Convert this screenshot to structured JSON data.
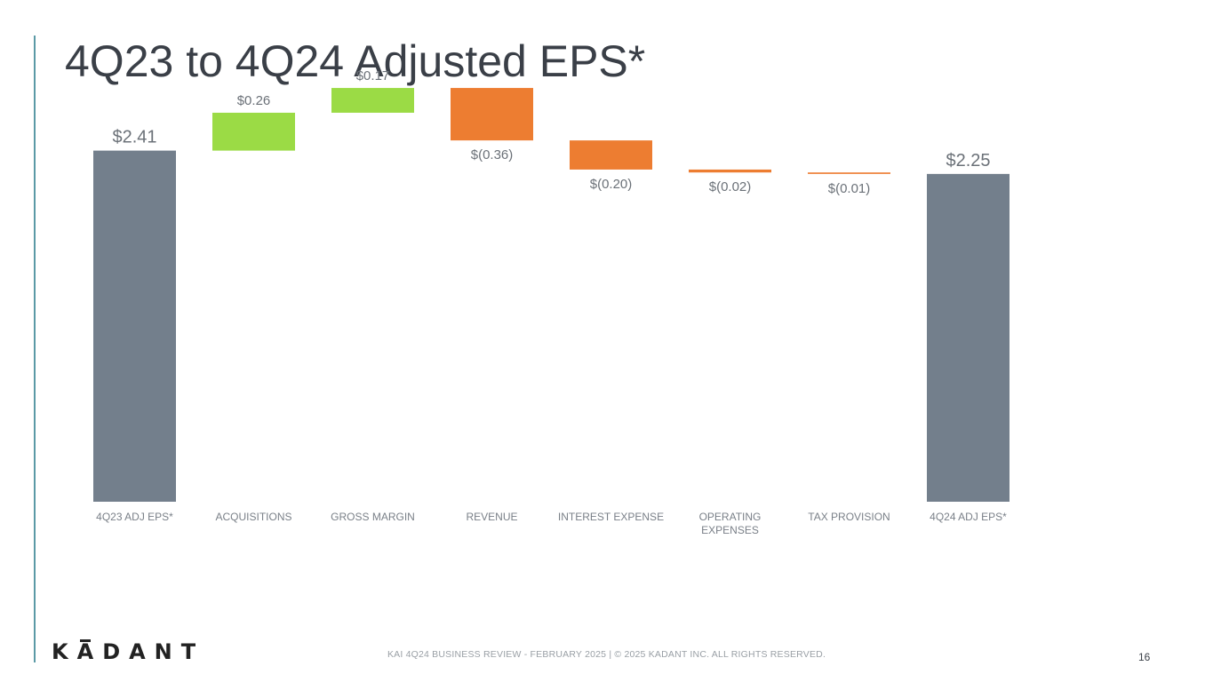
{
  "slide": {
    "title": "4Q23 to 4Q24 Adjusted EPS*",
    "logo_text": "KADANT",
    "footer": "KAI 4Q24 BUSINESS REVIEW - FEBRUARY 2025 | © 2025 KADANT INC. ALL RIGHTS RESERVED.",
    "page_number": "16"
  },
  "colors": {
    "total": "#737f8c",
    "increase": "#9bdb45",
    "decrease": "#ed7d31",
    "accent_line": "#5b9aa6",
    "label_text": "#6b7178"
  },
  "chart_data": {
    "type": "bar",
    "subtype": "waterfall",
    "categories": [
      "4Q23 ADJ EPS*",
      "ACQUISITIONS",
      "GROSS MARGIN",
      "REVENUE",
      "INTEREST EXPENSE",
      "OPERATING EXPENSES",
      "TAX PROVISION",
      "4Q24 ADJ EPS*"
    ],
    "category_lines": [
      [
        "4Q23 ADJ EPS*"
      ],
      [
        "ACQUISITIONS"
      ],
      [
        "GROSS MARGIN"
      ],
      [
        "REVENUE"
      ],
      [
        "INTEREST EXPENSE"
      ],
      [
        "OPERATING",
        "EXPENSES"
      ],
      [
        "TAX PROVISION"
      ],
      [
        "4Q24 ADJ EPS*"
      ]
    ],
    "values": [
      2.41,
      0.26,
      0.17,
      -0.36,
      -0.2,
      -0.02,
      -0.01,
      2.25
    ],
    "kinds": [
      "total",
      "increase",
      "increase",
      "decrease",
      "decrease",
      "decrease",
      "decrease",
      "total"
    ],
    "data_labels": [
      "$2.41",
      "$0.26",
      "$0.17",
      "$(0.36)",
      "$(0.20)",
      "$(0.02)",
      "$(0.01)",
      "$2.25"
    ],
    "ylim": [
      0,
      3.2
    ],
    "xlabel": "",
    "ylabel": "",
    "grid": false,
    "legend": "none"
  }
}
